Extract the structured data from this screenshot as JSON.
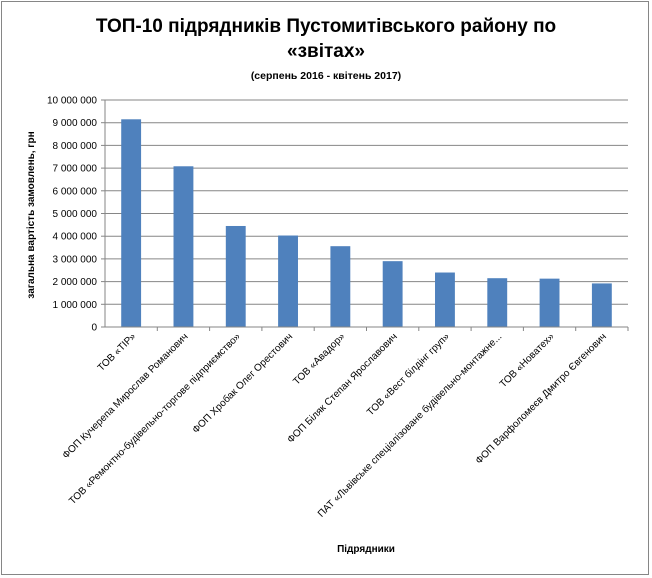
{
  "chart_data": {
    "type": "bar",
    "title": "ТОП-10 підрядників Пустомитівського району по «звітах»",
    "subtitle": "(серпень 2016 - квітень 2017)",
    "title_lines": [
      "ТОП-10 підрядників Пустомитівського району по",
      "«звітах»"
    ],
    "xlabel": "Підрядники",
    "ylabel": "загальна вартість замовлень, грн",
    "ylim": [
      0,
      10000000
    ],
    "ytick_step": 1000000,
    "ytick_labels": [
      "0",
      "1 000 000",
      "2 000 000",
      "3 000 000",
      "4 000 000",
      "5 000 000",
      "6 000 000",
      "7 000 000",
      "8 000 000",
      "9 000 000",
      "10 000 000"
    ],
    "grid": true,
    "legend": "none",
    "bar_color": "#4f81bd",
    "categories": [
      "ТОВ «ТІР»",
      "ФОП Кучерепа Мирослав Романович",
      "ТОВ «Ремонтно-будівельно-торгове підприємство»",
      "ФОП Хробак Олег Орестович",
      "ТОВ «Авадор»",
      "ФОП Біляк Степан Ярославович",
      "ТОВ «Вест білдінг груп»",
      "ПАТ «Львівське спеціалізоване будівельно-монтажне...",
      "ТОВ «Новатех»",
      "ФОП Варфоломеєв Дмитро Євгенович"
    ],
    "values": [
      9150000,
      7080000,
      4450000,
      4030000,
      3560000,
      2900000,
      2400000,
      2150000,
      2130000,
      1920000
    ]
  }
}
